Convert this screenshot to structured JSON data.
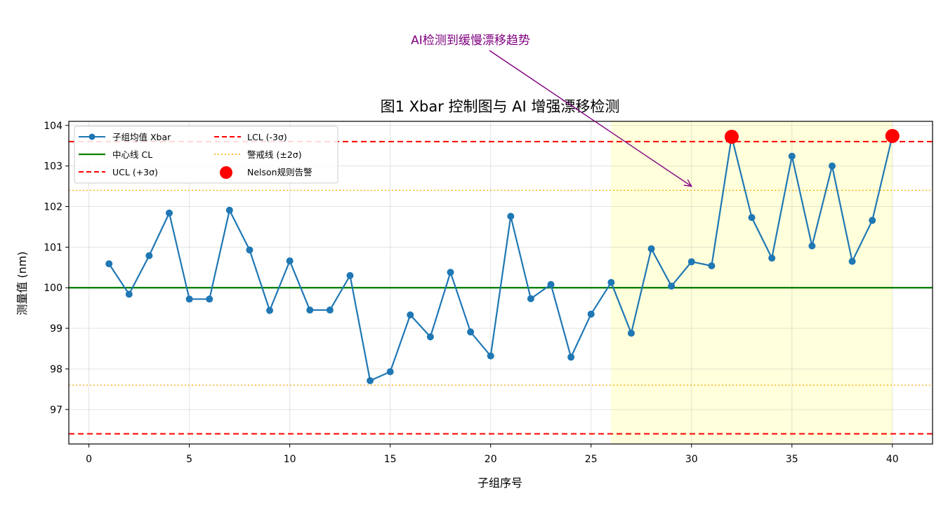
{
  "chart_data": {
    "type": "line",
    "title": "图1  Xbar 控制图与 AI 增强漂移检测",
    "xlabel": "子组序号",
    "ylabel": "测量值 (nm)",
    "xlim": [
      -1,
      42
    ],
    "ylim": [
      96.15,
      104.1
    ],
    "xticks": [
      0,
      5,
      10,
      15,
      20,
      25,
      30,
      35,
      40
    ],
    "yticks": [
      97,
      98,
      99,
      100,
      101,
      102,
      103,
      104
    ],
    "grid": true,
    "legend_position": "top-left",
    "series": [
      {
        "name": "子组均值 Xbar",
        "color": "#1f77b4",
        "x": [
          1,
          2,
          3,
          4,
          5,
          6,
          7,
          8,
          9,
          10,
          11,
          12,
          13,
          14,
          15,
          16,
          17,
          18,
          19,
          20,
          21,
          22,
          23,
          24,
          25,
          26,
          27,
          28,
          29,
          30,
          31,
          32,
          33,
          34,
          35,
          36,
          37,
          38,
          39,
          40
        ],
        "y": [
          100.59,
          99.84,
          100.79,
          101.84,
          99.72,
          99.72,
          101.91,
          100.93,
          99.44,
          100.66,
          99.45,
          99.45,
          100.3,
          97.71,
          97.93,
          99.33,
          98.79,
          100.38,
          98.91,
          98.32,
          101.76,
          99.73,
          100.08,
          98.29,
          99.35,
          100.13,
          98.88,
          100.96,
          100.04,
          100.64,
          100.54,
          103.72,
          101.73,
          100.73,
          103.24,
          101.03,
          103.0,
          100.65,
          101.66,
          103.74
        ]
      }
    ],
    "reference_lines": {
      "cl": {
        "name": "中心线 CL",
        "value": 100.0,
        "color": "#008000"
      },
      "ucl": {
        "name": "UCL (+3σ)",
        "value": 103.6,
        "color": "#ff0000"
      },
      "lcl": {
        "name": "LCL (-3σ)",
        "value": 96.4,
        "color": "#ff0000"
      },
      "warn": {
        "name": "警戒线 (±2σ)",
        "upper": 102.4,
        "lower": 97.6,
        "color": "#ffa500"
      }
    },
    "alerts": {
      "name": "Nelson规则告警",
      "color": "#ff0000",
      "x": [
        32,
        40
      ],
      "y": [
        103.72,
        103.74
      ]
    },
    "shaded_region": {
      "x_start": 26,
      "x_end": 40,
      "color": "#ffff99"
    },
    "annotation": {
      "text": "AI检测到缓慢漂移趋势",
      "target_x": 30,
      "target_y": 102.5,
      "color": "#800080"
    }
  }
}
